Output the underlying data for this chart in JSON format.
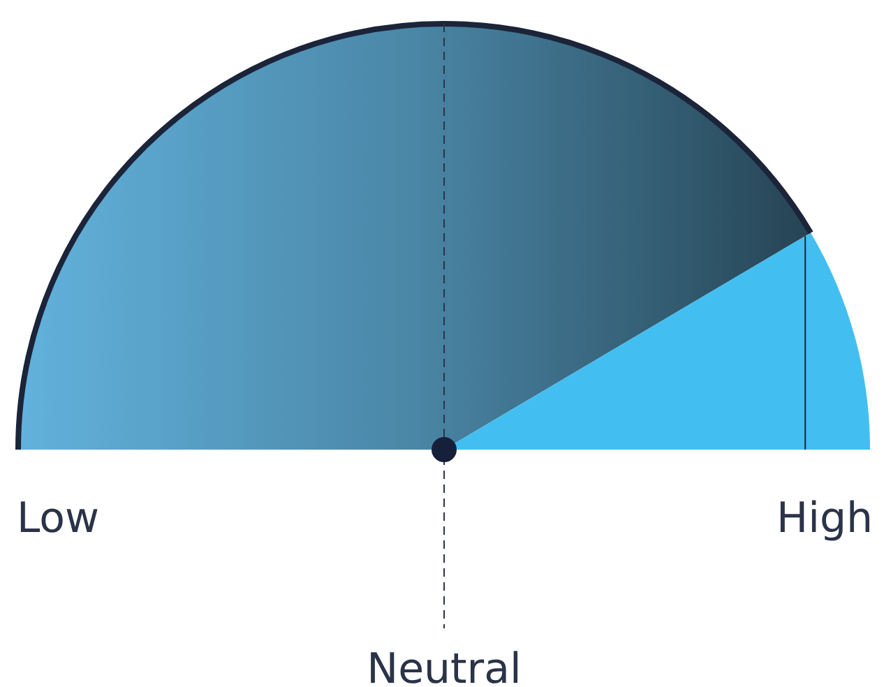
{
  "chart_data": {
    "type": "pie",
    "categories": [
      null,
      null
    ],
    "values": [
      83,
      17
    ],
    "colors": [
      "#4a86a6",
      "#42bff0"
    ],
    "annotations": [
      "Low",
      "High",
      "Neutral"
    ]
  }
}
